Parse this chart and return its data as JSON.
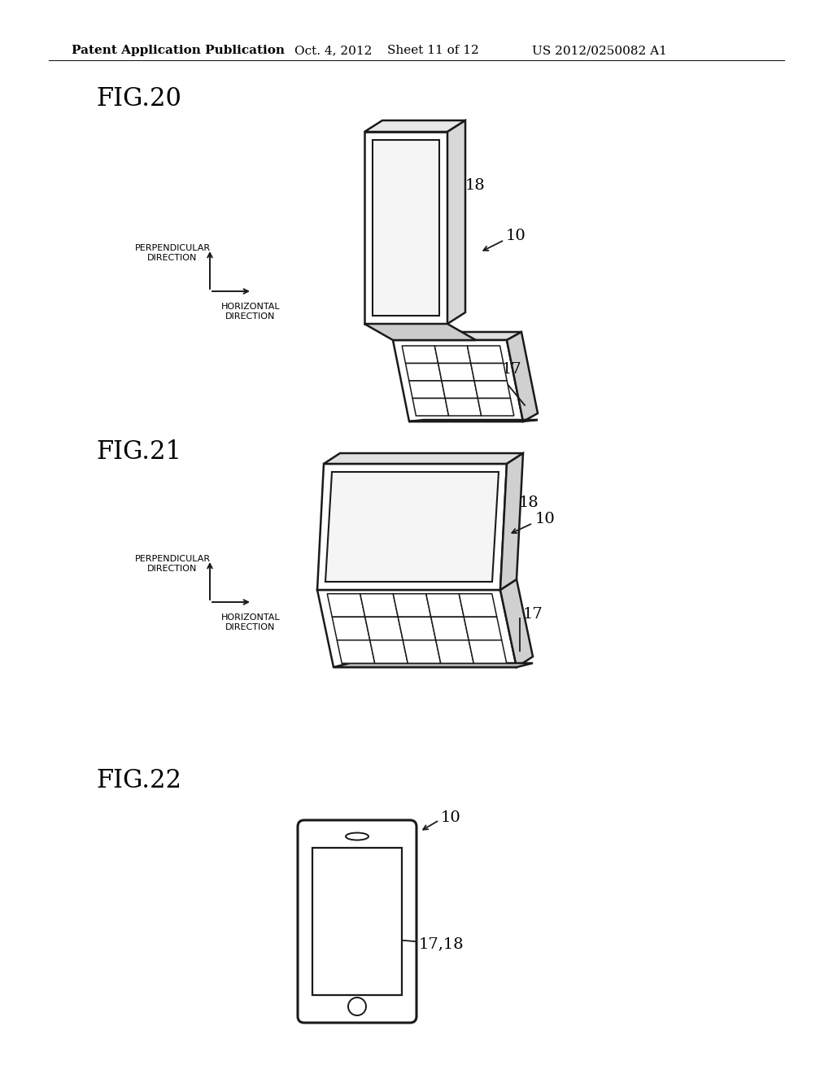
{
  "bg_color": "#ffffff",
  "header_text": "Patent Application Publication",
  "header_date": "Oct. 4, 2012",
  "header_sheet": "Sheet 11 of 12",
  "header_patent": "US 2012/0250082 A1",
  "fig20_label": "FIG.20",
  "fig21_label": "FIG.21",
  "fig22_label": "FIG.22",
  "line_color": "#1a1a1a",
  "text_color": "#000000",
  "fig_label_fontsize": 22,
  "header_fontsize": 11,
  "annotation_fontsize": 14,
  "direction_fontsize": 8
}
